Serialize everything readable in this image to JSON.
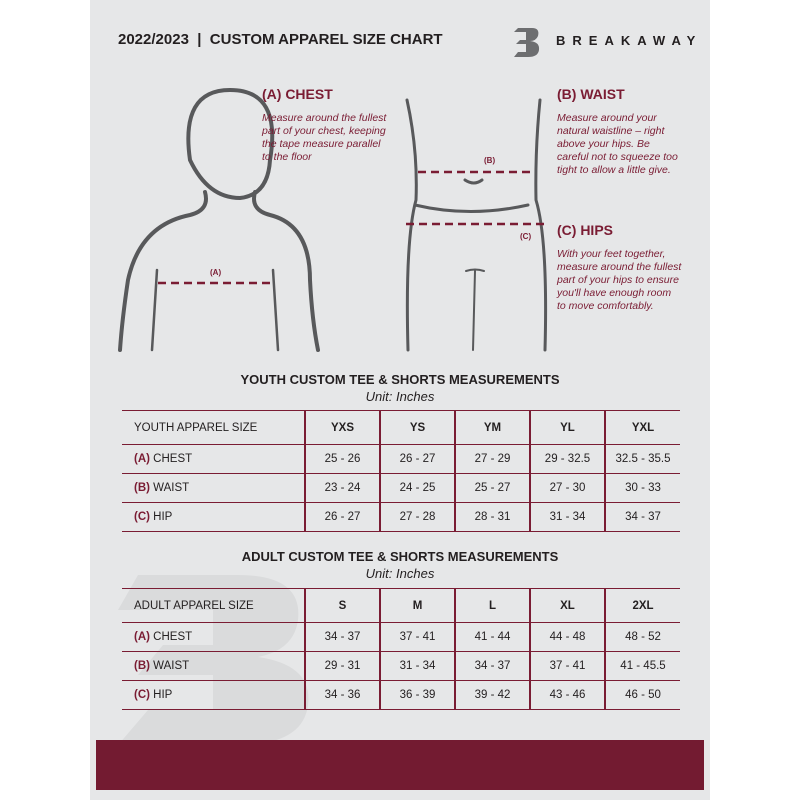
{
  "header": {
    "title": "2022/2023  |  CUSTOM APPAREL SIZE CHART",
    "brand": "BREAKAWAY",
    "logo_letter": "B"
  },
  "guides": {
    "chest": {
      "heading": "(A) CHEST",
      "text": "Measure around the fullest part of your chest, keeping the tape measure parallel to the floor",
      "marker": "(A)"
    },
    "waist": {
      "heading": "(B) WAIST",
      "text": "Measure around your natural waistline – right above your hips. Be careful not to squeeze too tight to allow a little give.",
      "marker": "(B)"
    },
    "hips": {
      "heading": "(C) HIPS",
      "text": "With your feet together, measure around the fullest part of your hips to ensure you'll have enough room to move comfortably.",
      "marker": "(C)"
    }
  },
  "colors": {
    "accent": "#7a1c33",
    "footer": "#731b31",
    "panel": "#e6e7e8"
  },
  "youth": {
    "title": "YOUTH CUSTOM TEE & SHORTS MEASUREMENTS",
    "unit": "Unit: Inches",
    "header": "YOUTH APPAREL SIZE",
    "sizes": [
      "YXS",
      "YS",
      "YM",
      "YL",
      "YXL"
    ],
    "rows": [
      {
        "key": "(A)",
        "label": "CHEST",
        "values": [
          "25 - 26",
          "26 - 27",
          "27 - 29",
          "29 - 32.5",
          "32.5 - 35.5"
        ]
      },
      {
        "key": "(B)",
        "label": "WAIST",
        "values": [
          "23 - 24",
          "24 - 25",
          "25 - 27",
          "27 - 30",
          "30 - 33"
        ]
      },
      {
        "key": "(C)",
        "label": "HIP",
        "values": [
          "26 - 27",
          "27 - 28",
          "28 - 31",
          "31 - 34",
          "34 - 37"
        ]
      }
    ]
  },
  "adult": {
    "title": "ADULT CUSTOM TEE & SHORTS MEASUREMENTS",
    "unit": "Unit: Inches",
    "header": "ADULT APPAREL SIZE",
    "sizes": [
      "S",
      "M",
      "L",
      "XL",
      "2XL"
    ],
    "rows": [
      {
        "key": "(A)",
        "label": "CHEST",
        "values": [
          "34 - 37",
          "37 - 41",
          "41 - 44",
          "44 - 48",
          "48 - 52"
        ]
      },
      {
        "key": "(B)",
        "label": "WAIST",
        "values": [
          "29 - 31",
          "31 - 34",
          "34 - 37",
          "37 - 41",
          "41 - 45.5"
        ]
      },
      {
        "key": "(C)",
        "label": "HIP",
        "values": [
          "34 - 36",
          "36 - 39",
          "39 - 42",
          "43 - 46",
          "46 - 50"
        ]
      }
    ]
  }
}
